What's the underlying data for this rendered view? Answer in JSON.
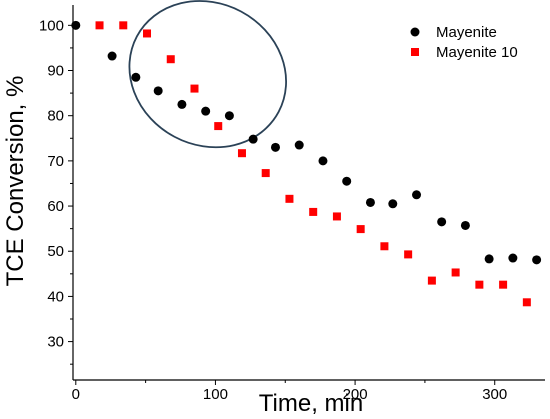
{
  "chart_data": {
    "type": "scatter",
    "title": "",
    "xlabel": "Time, min",
    "ylabel": "TCE Conversion, %",
    "xlim": [
      -2,
      336
    ],
    "ylim": [
      21.5,
      104.5
    ],
    "x_ticks": [
      0,
      100,
      200,
      300
    ],
    "y_ticks": [
      30,
      40,
      50,
      60,
      70,
      80,
      90,
      100
    ],
    "x_minor_step": 50,
    "y_minor_step": 5,
    "grid": false,
    "legend_position": "top-right",
    "series": [
      {
        "name": "Mayenite",
        "marker": "circle",
        "color": "#000000",
        "points": [
          [
            0,
            100
          ],
          [
            26,
            93.2
          ],
          [
            43,
            88.5
          ],
          [
            59,
            85.5
          ],
          [
            76,
            82.5
          ],
          [
            93,
            81.0
          ],
          [
            110,
            80.0
          ],
          [
            127,
            74.8
          ],
          [
            143,
            73.0
          ],
          [
            160,
            73.5
          ],
          [
            177,
            70.0
          ],
          [
            194,
            65.5
          ],
          [
            211,
            60.8
          ],
          [
            227,
            60.5
          ],
          [
            244,
            62.5
          ],
          [
            262,
            56.5
          ],
          [
            279,
            55.7
          ],
          [
            296,
            48.3
          ],
          [
            313,
            48.5
          ],
          [
            330,
            48.1
          ]
        ]
      },
      {
        "name": "Mayenite 10",
        "marker": "square",
        "color": "#ff0000",
        "points": [
          [
            17,
            100
          ],
          [
            34,
            100
          ],
          [
            51,
            98.2
          ],
          [
            68,
            92.5
          ],
          [
            85,
            86.0
          ],
          [
            102,
            77.7
          ],
          [
            119,
            71.7
          ],
          [
            136,
            67.3
          ],
          [
            153,
            61.6
          ],
          [
            170,
            58.7
          ],
          [
            187,
            57.7
          ],
          [
            204,
            54.9
          ],
          [
            221,
            51.1
          ],
          [
            238,
            49.3
          ],
          [
            255,
            43.5
          ],
          [
            272,
            45.3
          ],
          [
            289,
            42.6
          ],
          [
            306,
            42.6
          ],
          [
            323,
            38.7
          ]
        ]
      }
    ],
    "annotations": [
      {
        "shape": "ellipse",
        "color": "#2b4257",
        "center": [
          94.5,
          89.2
        ],
        "radii": [
          57.5,
          15.7
        ]
      }
    ]
  }
}
